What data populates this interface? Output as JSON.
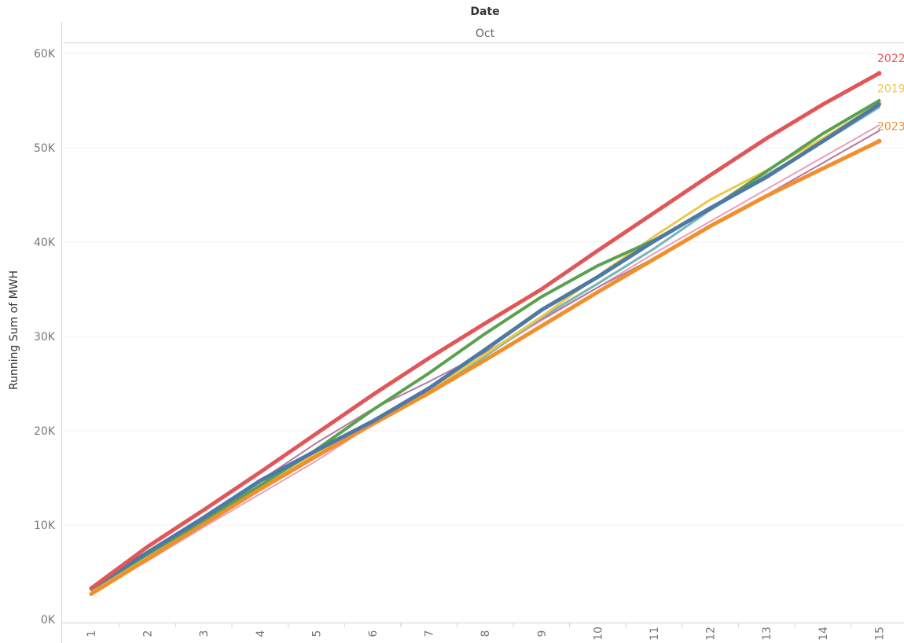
{
  "header": {
    "title": "Date",
    "subtitle": "Oct"
  },
  "chart_data": {
    "type": "line",
    "ylabel": "Running Sum of MWH",
    "ylim": [
      0,
      62000
    ],
    "yticks": [
      0,
      10000,
      20000,
      30000,
      40000,
      50000,
      60000
    ],
    "ytick_labels": [
      "0K",
      "10K",
      "20K",
      "30K",
      "40K",
      "50K",
      "60K"
    ],
    "x": [
      1,
      2,
      3,
      4,
      5,
      6,
      7,
      8,
      9,
      10,
      11,
      12,
      13,
      14,
      15
    ],
    "x_labels": [
      "1",
      "2",
      "3",
      "4",
      "5",
      "6",
      "7",
      "8",
      "9",
      "10",
      "11",
      "12",
      "13",
      "14",
      "15"
    ],
    "grid": true,
    "series": [
      {
        "name": "",
        "color": "#e8a0b8",
        "width": 2,
        "values": [
          3000,
          6200,
          9800,
          13300,
          16800,
          20700,
          24200,
          28000,
          31700,
          35200,
          38800,
          42200,
          45600,
          49000,
          52400
        ]
      },
      {
        "name": "",
        "color": "#b07aa1",
        "width": 2,
        "values": [
          3300,
          7200,
          10900,
          14700,
          18700,
          22300,
          25200,
          28300,
          31800,
          35200,
          38300,
          41800,
          45000,
          48400,
          51800
        ]
      },
      {
        "name": "",
        "color": "#76b7b2",
        "width": 3,
        "values": [
          3300,
          6800,
          10400,
          14000,
          17900,
          21000,
          24200,
          27900,
          32000,
          35600,
          39300,
          43400,
          47100,
          50600,
          54300
        ]
      },
      {
        "name": "2019",
        "color": "#edc948",
        "width": 3,
        "values": [
          3100,
          6700,
          10300,
          13900,
          17600,
          21000,
          24300,
          28100,
          32100,
          36400,
          40600,
          44500,
          47600,
          51000,
          54700
        ]
      },
      {
        "name": "",
        "color": "#59a14f",
        "width": 4,
        "values": [
          3200,
          6900,
          10500,
          14200,
          18000,
          22200,
          26100,
          30300,
          34200,
          37500,
          40200,
          43500,
          47500,
          51500,
          55000
        ]
      },
      {
        "name": "2023",
        "color": "#f28e2b",
        "width": 5,
        "values": [
          2700,
          6400,
          10100,
          13800,
          17300,
          20700,
          24000,
          27500,
          31100,
          34700,
          38200,
          41700,
          44900,
          47800,
          50700
        ]
      },
      {
        "name": "",
        "color": "#4e79a7",
        "width": 5,
        "values": [
          3300,
          7100,
          10800,
          14700,
          17900,
          21000,
          24500,
          28600,
          32800,
          36300,
          40100,
          43600,
          46900,
          50700,
          54600
        ]
      },
      {
        "name": "2022",
        "color": "#e15759",
        "width": 5,
        "values": [
          3300,
          7700,
          11600,
          15600,
          19700,
          23800,
          27700,
          31400,
          35000,
          39100,
          43100,
          47100,
          51000,
          54600,
          57900
        ]
      }
    ]
  }
}
